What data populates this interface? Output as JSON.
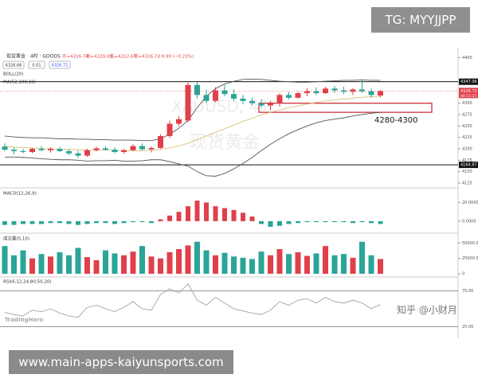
{
  "chart_data": {
    "type": "candlestick",
    "symbol": "现货黄金 · 4时 · GOODS",
    "ohlc_labels": [
      "开=4316.74",
      "高=4329.00",
      "低=4312.67",
      "收=4326.72"
    ],
    "change": "−9.99 (−0.23%)",
    "chips": [
      "4326.66",
      "0.01",
      "4326.72"
    ],
    "indicators": [
      "BOLL(20)",
      "MA(52,100,10)"
    ],
    "up_color": "#e0404a",
    "down_color": "#2aa597",
    "candles": [
      [
        4205,
        4212,
        4195,
        4198
      ],
      [
        4198,
        4203,
        4188,
        4195
      ],
      [
        4195,
        4200,
        4190,
        4193
      ],
      [
        4193,
        4202,
        4190,
        4200
      ],
      [
        4200,
        4206,
        4195,
        4197
      ],
      [
        4197,
        4203,
        4192,
        4200
      ],
      [
        4200,
        4204,
        4193,
        4195
      ],
      [
        4195,
        4199,
        4186,
        4190
      ],
      [
        4190,
        4196,
        4180,
        4185
      ],
      [
        4185,
        4200,
        4182,
        4197
      ],
      [
        4197,
        4205,
        4194,
        4201
      ],
      [
        4201,
        4206,
        4196,
        4198
      ],
      [
        4198,
        4203,
        4190,
        4193
      ],
      [
        4193,
        4200,
        4189,
        4197
      ],
      [
        4197,
        4210,
        4195,
        4206
      ],
      [
        4206,
        4212,
        4196,
        4199
      ],
      [
        4199,
        4205,
        4192,
        4202
      ],
      [
        4202,
        4232,
        4200,
        4228
      ],
      [
        4228,
        4262,
        4224,
        4255
      ],
      [
        4255,
        4272,
        4250,
        4265
      ],
      [
        4262,
        4348,
        4258,
        4340
      ],
      [
        4340,
        4346,
        4310,
        4318
      ],
      [
        4318,
        4330,
        4300,
        4305
      ],
      [
        4305,
        4335,
        4302,
        4328
      ],
      [
        4328,
        4340,
        4315,
        4320
      ],
      [
        4320,
        4330,
        4305,
        4310
      ],
      [
        4310,
        4318,
        4298,
        4305
      ],
      [
        4305,
        4312,
        4295,
        4300
      ],
      [
        4300,
        4308,
        4290,
        4295
      ],
      [
        4295,
        4305,
        4285,
        4300
      ],
      [
        4300,
        4322,
        4292,
        4318
      ],
      [
        4318,
        4325,
        4308,
        4312
      ],
      [
        4312,
        4325,
        4310,
        4322
      ],
      [
        4322,
        4332,
        4315,
        4326
      ],
      [
        4326,
        4335,
        4318,
        4322
      ],
      [
        4322,
        4336,
        4320,
        4332
      ],
      [
        4332,
        4338,
        4322,
        4328
      ],
      [
        4328,
        4336,
        4320,
        4325
      ],
      [
        4325,
        4333,
        4318,
        4330
      ],
      [
        4330,
        4352,
        4322,
        4326
      ],
      [
        4326,
        4332,
        4312,
        4318
      ],
      [
        4316.74,
        4329.0,
        4312.67,
        4326.72
      ]
    ],
    "boll_upper": [
      4228,
      4226,
      4225,
      4224,
      4224,
      4223,
      4222,
      4222,
      4221,
      4221,
      4220,
      4220,
      4219,
      4219,
      4219,
      4218,
      4218,
      4222,
      4232,
      4245,
      4262,
      4290,
      4315,
      4332,
      4342,
      4348,
      4352,
      4353,
      4352,
      4350,
      4348,
      4347,
      4346,
      4346,
      4347,
      4348,
      4349,
      4350,
      4350,
      4351,
      4350,
      4350
    ],
    "boll_mid": [
      4205,
      4204,
      4203,
      4202,
      4201,
      4200,
      4199,
      4199,
      4198,
      4197,
      4197,
      4197,
      4197,
      4196,
      4196,
      4196,
      4197,
      4199,
      4202,
      4206,
      4212,
      4220,
      4228,
      4236,
      4244,
      4252,
      4260,
      4267,
      4274,
      4280,
      4285,
      4290,
      4294,
      4298,
      4302,
      4305,
      4307,
      4309,
      4311,
      4313,
      4314,
      4315
    ],
    "boll_lower": [
      4182,
      4182,
      4181,
      4180,
      4178,
      4177,
      4176,
      4176,
      4175,
      4173,
      4174,
      4174,
      4175,
      4173,
      4173,
      4174,
      4176,
      4176,
      4172,
      4167,
      4162,
      4150,
      4141,
      4140,
      4146,
      4156,
      4168,
      4181,
      4196,
      4210,
      4222,
      4233,
      4242,
      4250,
      4257,
      4262,
      4265,
      4268,
      4272,
      4275,
      4278,
      4280
    ],
    "ylim": [
      4118,
      4418
    ],
    "yticks": [
      4125,
      4150,
      4175,
      4200,
      4225,
      4250,
      4275,
      4300,
      4400
    ],
    "price_lines": [
      4347.06,
      4164.87
    ],
    "last_price": 4326.72,
    "countdown": "00:15:15",
    "zone": {
      "label": "4280-4300",
      "low": 4280,
      "high": 4300
    },
    "macd": {
      "title": "MACD(12,26,9)",
      "values": [
        -4,
        -4,
        -3,
        -3,
        -3,
        -2,
        -2,
        -3,
        -4,
        -3,
        -2,
        -2,
        -3,
        -2,
        -1,
        -1,
        -2,
        2,
        6,
        10,
        16,
        22,
        20,
        16,
        14,
        12,
        9,
        5,
        -3,
        -6,
        -5,
        -3,
        -2,
        -1,
        -1,
        -1,
        -1,
        -1,
        -2,
        -1,
        -2,
        -3
      ],
      "ylim": [
        -12,
        34
      ],
      "yticks": [
        {
          "value": 0,
          "label": "0.0000"
        },
        {
          "value": 20,
          "label": "20.0000"
        }
      ]
    },
    "volume": {
      "title": "成交量(5,10)",
      "values": [
        45000,
        30000,
        38000,
        25000,
        32000,
        28000,
        35000,
        30000,
        42000,
        27000,
        22000,
        38000,
        33000,
        30000,
        36000,
        45000,
        28000,
        25000,
        35000,
        40000,
        46000,
        52000,
        38000,
        30000,
        34000,
        28000,
        26000,
        24000,
        36000,
        30000,
        40000,
        32000,
        35000,
        29000,
        33000,
        45000,
        30000,
        32000,
        26000,
        52000,
        30000,
        24000
      ],
      "ylim": [
        0,
        62000
      ],
      "yticks": [
        0,
        {
          "value": 25000,
          "label": "25000.00"
        },
        {
          "value": 50000,
          "label": "50000.00"
        }
      ]
    },
    "rsi": {
      "title": "RSI(6,12,24,80,50,20)",
      "values": [
        45,
        42,
        40,
        48,
        46,
        50,
        44,
        40,
        38,
        52,
        55,
        50,
        46,
        52,
        60,
        50,
        48,
        70,
        78,
        72,
        85,
        62,
        55,
        66,
        58,
        50,
        47,
        44,
        42,
        48,
        60,
        55,
        62,
        64,
        58,
        66,
        60,
        58,
        62,
        58,
        50,
        56
      ],
      "ylim": [
        10,
        90
      ],
      "yticks": [
        {
          "value": 25,
          "label": "25.00"
        },
        {
          "value": 75,
          "label": "75.00"
        }
      ]
    },
    "watermark": [
      "XAUUSD, 4时",
      "现货黄金"
    ],
    "brand": "TradingHero",
    "credit": "知乎 @小财月",
    "tg": "TG: MYYJJPP",
    "url": "www.main-apps-kaiyunsports.com"
  }
}
